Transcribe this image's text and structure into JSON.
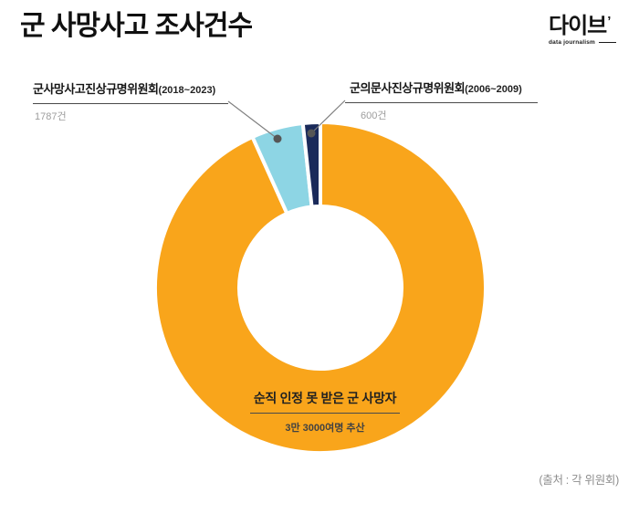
{
  "header": {
    "title": "군 사망사고 조사건수",
    "logo": {
      "text": "다이브",
      "mark": "’",
      "subtext": "data journalism"
    }
  },
  "annotations": {
    "left": {
      "name": "군사망사고진상규명위원회",
      "period": "(2018~2023)",
      "value": "1787건"
    },
    "right": {
      "name": "군의문사진상규명위원회",
      "period": "(2006~2009)",
      "value": "600건"
    },
    "center": {
      "label": "순직 인정 못 받은 군 사망자",
      "sublabel": "3만 3000여명 추산"
    }
  },
  "source": "(출처 : 각 위원회)",
  "colors": {
    "main_orange": "#F9A51B",
    "light_blue": "#8DD5E4",
    "navy": "#1A2A5A",
    "background": "#FFFFFF"
  },
  "chart_data": {
    "type": "pie",
    "subtype": "donut",
    "title": "군 사망사고 조사건수",
    "unit": "건",
    "start_angle_deg": 0,
    "clockwise": true,
    "inner_radius_ratio": 0.49,
    "segments": [
      {
        "label": "순직 인정 못 받은 군 사망자 (3만 3000여명 추산)",
        "value": 33000,
        "color": "#F9A51B"
      },
      {
        "label": "군사망사고진상규명위원회(2018~2023)",
        "value": 1787,
        "color": "#8DD5E4"
      },
      {
        "label": "군의문사진상규명위원회(2006~2009)",
        "value": 600,
        "color": "#1A2A5A"
      }
    ],
    "source": "(출처 : 각 위원회)"
  }
}
